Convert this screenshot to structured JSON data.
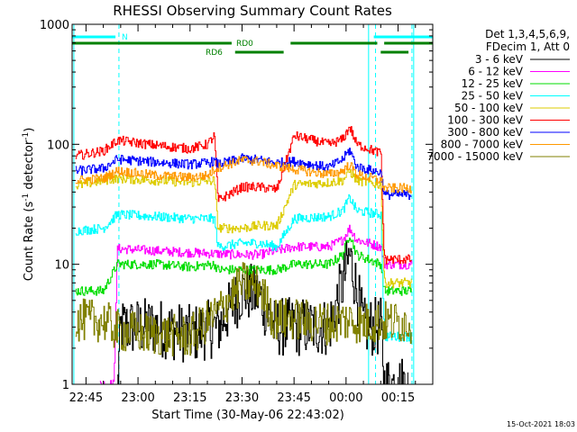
{
  "chart_data": {
    "type": "line",
    "title": "RHESSI Observing Summary Count Rates",
    "xlabel": "Start Time (30-May-06 22:43:02)",
    "ylabel_main": "Count Rate (s",
    "ylabel_sup1": "-1",
    "ylabel_mid": " detector",
    "ylabel_sup2": "-1",
    "ylabel_end": ")",
    "y_scale": "log",
    "ylim": [
      1,
      1000
    ],
    "xlim_minutes": [
      -4,
      100
    ],
    "x_ticks": [
      {
        "minute": 0,
        "label": "22:45"
      },
      {
        "minute": 15,
        "label": "23:00"
      },
      {
        "minute": 30,
        "label": "23:15"
      },
      {
        "minute": 45,
        "label": "23:30"
      },
      {
        "minute": 60,
        "label": "23:45"
      },
      {
        "minute": 75,
        "label": "00:00"
      },
      {
        "minute": 90,
        "label": "00:15"
      }
    ],
    "y_ticks": [
      {
        "value": 1,
        "label": "1"
      },
      {
        "value": 10,
        "label": "10"
      },
      {
        "value": 100,
        "label": "100"
      },
      {
        "value": 1000,
        "label": "1000"
      }
    ],
    "legend_header": [
      "Det 1,3,4,5,6,9,",
      "FDecim 1, Att 0"
    ],
    "series": [
      {
        "name": "3 - 6 keV",
        "color": "#000000",
        "points": [
          [
            9,
            1
          ],
          [
            10,
            3
          ],
          [
            20,
            3
          ],
          [
            30,
            2.6
          ],
          [
            38,
            3
          ],
          [
            45,
            6
          ],
          [
            50,
            5.5
          ],
          [
            54,
            3
          ],
          [
            60,
            3
          ],
          [
            70,
            3
          ],
          [
            74,
            7
          ],
          [
            76,
            12
          ],
          [
            78,
            6
          ],
          [
            80,
            3
          ],
          [
            85,
            3
          ],
          [
            86,
            1
          ],
          [
            93,
            1
          ]
        ]
      },
      {
        "name": "6 - 12 keV",
        "color": "#ff00ff",
        "points": [
          [
            4,
            1
          ],
          [
            8,
            1
          ],
          [
            9,
            13.5
          ],
          [
            30,
            12.5
          ],
          [
            45,
            12
          ],
          [
            50,
            12
          ],
          [
            55,
            13
          ],
          [
            60,
            14
          ],
          [
            70,
            14
          ],
          [
            74,
            16
          ],
          [
            76,
            20
          ],
          [
            78,
            16
          ],
          [
            85,
            14
          ],
          [
            86,
            10
          ],
          [
            94,
            10
          ]
        ]
      },
      {
        "name": "12 - 25 keV",
        "color": "#00dd00",
        "points": [
          [
            -3,
            6
          ],
          [
            5,
            6
          ],
          [
            9,
            10
          ],
          [
            20,
            10
          ],
          [
            30,
            9.5
          ],
          [
            37,
            10
          ],
          [
            38,
            9
          ],
          [
            45,
            9
          ],
          [
            55,
            9
          ],
          [
            60,
            10
          ],
          [
            70,
            10
          ],
          [
            74,
            12
          ],
          [
            76,
            18
          ],
          [
            78,
            12
          ],
          [
            85,
            10
          ],
          [
            86,
            6
          ],
          [
            94,
            6
          ]
        ]
      },
      {
        "name": "25 - 50 keV",
        "color": "#00ffff",
        "points": [
          [
            -3,
            19
          ],
          [
            5,
            20
          ],
          [
            9,
            26
          ],
          [
            20,
            25
          ],
          [
            30,
            24
          ],
          [
            37,
            24
          ],
          [
            38,
            14
          ],
          [
            45,
            15
          ],
          [
            50,
            15
          ],
          [
            55,
            14
          ],
          [
            60,
            24
          ],
          [
            70,
            25
          ],
          [
            74,
            28
          ],
          [
            76,
            36
          ],
          [
            78,
            28
          ],
          [
            85,
            26
          ],
          [
            86,
            2.5
          ],
          [
            94,
            2.5
          ]
        ]
      },
      {
        "name": "50 - 100 keV",
        "color": "#ddcc00",
        "points": [
          [
            -3,
            45
          ],
          [
            5,
            50
          ],
          [
            9,
            52
          ],
          [
            20,
            50
          ],
          [
            30,
            48
          ],
          [
            37,
            50
          ],
          [
            38,
            20
          ],
          [
            45,
            20
          ],
          [
            50,
            21
          ],
          [
            55,
            21
          ],
          [
            60,
            46
          ],
          [
            70,
            48
          ],
          [
            74,
            50
          ],
          [
            76,
            60
          ],
          [
            78,
            50
          ],
          [
            85,
            46
          ],
          [
            86,
            7
          ],
          [
            94,
            7
          ]
        ]
      },
      {
        "name": "100 - 300 keV",
        "color": "#ff0000",
        "points": [
          [
            -3,
            80
          ],
          [
            5,
            88
          ],
          [
            9,
            108
          ],
          [
            20,
            98
          ],
          [
            30,
            92
          ],
          [
            35,
            100
          ],
          [
            37,
            118
          ],
          [
            38,
            34
          ],
          [
            45,
            44
          ],
          [
            50,
            44
          ],
          [
            55,
            42
          ],
          [
            60,
            118
          ],
          [
            70,
            100
          ],
          [
            74,
            110
          ],
          [
            76,
            140
          ],
          [
            78,
            100
          ],
          [
            85,
            84
          ],
          [
            86,
            11
          ],
          [
            94,
            11
          ]
        ]
      },
      {
        "name": "300 - 800 keV",
        "color": "#0000ff",
        "points": [
          [
            -3,
            60
          ],
          [
            5,
            63
          ],
          [
            9,
            75
          ],
          [
            20,
            71
          ],
          [
            30,
            68
          ],
          [
            35,
            70
          ],
          [
            37,
            72
          ],
          [
            38,
            68
          ],
          [
            45,
            76
          ],
          [
            50,
            74
          ],
          [
            55,
            70
          ],
          [
            60,
            72
          ],
          [
            70,
            64
          ],
          [
            74,
            75
          ],
          [
            76,
            90
          ],
          [
            78,
            65
          ],
          [
            85,
            58
          ],
          [
            86,
            38
          ],
          [
            94,
            38
          ]
        ]
      },
      {
        "name": "800 - 7000 keV",
        "color": "#ff9900",
        "points": [
          [
            -3,
            50
          ],
          [
            5,
            52
          ],
          [
            9,
            60
          ],
          [
            20,
            55
          ],
          [
            30,
            53
          ],
          [
            35,
            55
          ],
          [
            37,
            62
          ],
          [
            38,
            64
          ],
          [
            45,
            74
          ],
          [
            50,
            72
          ],
          [
            55,
            66
          ],
          [
            60,
            62
          ],
          [
            70,
            56
          ],
          [
            74,
            60
          ],
          [
            76,
            68
          ],
          [
            78,
            56
          ],
          [
            85,
            50
          ],
          [
            86,
            43
          ],
          [
            94,
            43
          ]
        ]
      },
      {
        "name": "7000 - 15000 keV",
        "color": "#808000",
        "points": [
          [
            -3,
            3.4
          ],
          [
            5,
            3.4
          ],
          [
            9,
            2.8
          ],
          [
            20,
            2.6
          ],
          [
            30,
            2.5
          ],
          [
            38,
            4
          ],
          [
            45,
            7
          ],
          [
            50,
            6.5
          ],
          [
            54,
            3.5
          ],
          [
            60,
            3.5
          ],
          [
            70,
            3.2
          ],
          [
            74,
            3.4
          ],
          [
            76,
            3.4
          ],
          [
            80,
            3.2
          ],
          [
            85,
            3.3
          ],
          [
            86,
            3.3
          ],
          [
            94,
            3.3
          ]
        ]
      }
    ],
    "annotations": {
      "saa": {
        "label": "N",
        "intervals": [
          [
            -5,
            8.5
          ],
          [
            83,
            100
          ]
        ]
      },
      "rd0": {
        "label": "RD0",
        "intervals": [
          [
            -5,
            42
          ],
          [
            59,
            84
          ],
          [
            86,
            100
          ]
        ]
      },
      "rd6": {
        "label": "RD6",
        "intervals": [
          [
            43,
            57
          ],
          [
            85,
            93
          ]
        ]
      },
      "vlines_solid": [
        -3.5,
        81.5,
        94.5
      ],
      "vlines_dashed": [
        9.5,
        83.5,
        94
      ]
    }
  },
  "footer": {
    "timestamp": "15-Oct-2021 18:03"
  }
}
